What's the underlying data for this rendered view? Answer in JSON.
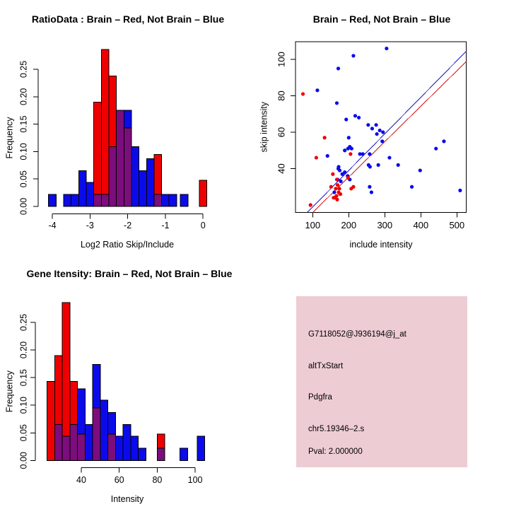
{
  "figure": {
    "background": "#ffffff"
  },
  "colors": {
    "red": "#ee0000",
    "blue": "#0b0bea",
    "overlap": "#7c0d7c",
    "line_blue": "#1717d0",
    "line_red": "#d01717",
    "panel_pink": "#edccd4",
    "pval_red": "#a62433",
    "axis": "#000000"
  },
  "chart_data": [
    {
      "id": "ratio_hist",
      "type": "bar",
      "title": "RatioData : Brain – Red, Not Brain – Blue",
      "xlabel": "Log2 Ratio Skip/Include",
      "ylabel": "Frequency",
      "x_ticks": [
        -4,
        -3,
        -2,
        -1,
        0
      ],
      "y_ticks": [
        0,
        0.05,
        0.1,
        0.15,
        0.2,
        0.25
      ],
      "bin_width": 0.2,
      "legend": {
        "red": "Brain",
        "blue": "Not Brain"
      },
      "bars": [
        [
          -4.0,
          0,
          0.022
        ],
        [
          -3.6,
          0,
          0.022
        ],
        [
          -3.4,
          0,
          0.022
        ],
        [
          -3.2,
          0,
          0.065
        ],
        [
          -3.0,
          0,
          0.044
        ],
        [
          -2.8,
          0.19,
          0.022
        ],
        [
          -2.6,
          0.286,
          0.022
        ],
        [
          -2.4,
          0.238,
          0.109
        ],
        [
          -2.2,
          0.175,
          0.175
        ],
        [
          -2.0,
          0.143,
          0.175
        ],
        [
          -1.8,
          0,
          0.109
        ],
        [
          -1.6,
          0,
          0.065
        ],
        [
          -1.4,
          0,
          0.087
        ],
        [
          -1.2,
          0.095,
          0.022
        ],
        [
          -1.0,
          0,
          0.022
        ],
        [
          -0.8,
          0,
          0.022
        ],
        [
          -0.5,
          0,
          0.022
        ],
        [
          0.0,
          0.048,
          0
        ]
      ]
    },
    {
      "id": "scatter",
      "type": "scatter",
      "title": "Brain – Red, Not Brain – Blue",
      "xlabel": "include intensity",
      "ylabel": "skip intensity",
      "x_ticks": [
        100,
        200,
        300,
        400,
        500
      ],
      "y_ticks": [
        40,
        60,
        80,
        100
      ],
      "xlim": [
        52,
        527
      ],
      "ylim": [
        15.9,
        109.7
      ],
      "blue_line": [
        [
          85,
          15.9
        ],
        [
          526,
          104.5
        ]
      ],
      "red_line": [
        [
          100,
          15.9
        ],
        [
          526,
          98.8
        ]
      ],
      "blue_points": [
        [
          305,
          106
        ],
        [
          213,
          102
        ],
        [
          171,
          95
        ],
        [
          113,
          83
        ],
        [
          167,
          76
        ],
        [
          193,
          67
        ],
        [
          218,
          69
        ],
        [
          228,
          68
        ],
        [
          254,
          64
        ],
        [
          265,
          62
        ],
        [
          276,
          64
        ],
        [
          286,
          61
        ],
        [
          295,
          60
        ],
        [
          278,
          59
        ],
        [
          293,
          55
        ],
        [
          200,
          57
        ],
        [
          442,
          51
        ],
        [
          464,
          55
        ],
        [
          189,
          50
        ],
        [
          198,
          51
        ],
        [
          203,
          52
        ],
        [
          208,
          51
        ],
        [
          231,
          48
        ],
        [
          239,
          48
        ],
        [
          258,
          48
        ],
        [
          141,
          47
        ],
        [
          313,
          46
        ],
        [
          337,
          42
        ],
        [
          255,
          42
        ],
        [
          259,
          41
        ],
        [
          282,
          42
        ],
        [
          398,
          39
        ],
        [
          171,
          40
        ],
        [
          175,
          39
        ],
        [
          182,
          37
        ],
        [
          189,
          38
        ],
        [
          197,
          36
        ],
        [
          203,
          34
        ],
        [
          169,
          34
        ],
        [
          178,
          33
        ],
        [
          258,
          30
        ],
        [
          263,
          27
        ],
        [
          375,
          30
        ],
        [
          509,
          28
        ],
        [
          160,
          27
        ],
        [
          172,
          41
        ]
      ],
      "red_points": [
        [
          73,
          81
        ],
        [
          133,
          57
        ],
        [
          110,
          46
        ],
        [
          205,
          48
        ],
        [
          94,
          20
        ],
        [
          156,
          37
        ],
        [
          198,
          35
        ],
        [
          167,
          34
        ],
        [
          151,
          30
        ],
        [
          164,
          29
        ],
        [
          174,
          29
        ],
        [
          207,
          29
        ],
        [
          213,
          30
        ],
        [
          172,
          27
        ],
        [
          176,
          26
        ],
        [
          166,
          25
        ],
        [
          158,
          24
        ],
        [
          168,
          23
        ],
        [
          161,
          24
        ],
        [
          169,
          31
        ],
        [
          177,
          26
        ]
      ]
    },
    {
      "id": "gene_hist",
      "type": "bar",
      "title": "Gene Itensity: Brain – Red, Not Brain – Blue",
      "xlabel": "Intensity",
      "ylabel": "Frequency",
      "x_ticks": [
        40,
        60,
        80,
        100
      ],
      "y_ticks": [
        0,
        0.05,
        0.1,
        0.15,
        0.2,
        0.25
      ],
      "bin_width": 4,
      "legend": {
        "red": "Brain",
        "blue": "Not Brain"
      },
      "bars": [
        [
          24,
          0.143,
          0
        ],
        [
          28,
          0.19,
          0.065
        ],
        [
          32,
          0.286,
          0.044
        ],
        [
          36,
          0.143,
          0.065
        ],
        [
          40,
          0.048,
          0.13
        ],
        [
          44,
          0,
          0.065
        ],
        [
          48,
          0.095,
          0.174
        ],
        [
          52,
          0,
          0.109
        ],
        [
          56,
          0.048,
          0.087
        ],
        [
          60,
          0,
          0.044
        ],
        [
          64,
          0,
          0.065
        ],
        [
          68,
          0,
          0.044
        ],
        [
          72,
          0,
          0.022
        ],
        [
          82,
          0.048,
          0.022
        ],
        [
          94,
          0,
          0.022
        ],
        [
          103,
          0,
          0.044
        ]
      ]
    },
    {
      "id": "info_panel",
      "type": "text_panel",
      "lines": [
        {
          "text": "G7118052@J936194@j_at",
          "color": "#111111"
        },
        {
          "text": "altTxStart",
          "color": "#111111"
        },
        {
          "text": "Pdgfra",
          "color": "#111111"
        },
        {
          "text": "chr5.19346–2.s",
          "color": "#111111"
        },
        {
          "text": "Pval: 2.000000",
          "color": "#a62433"
        }
      ]
    }
  ]
}
